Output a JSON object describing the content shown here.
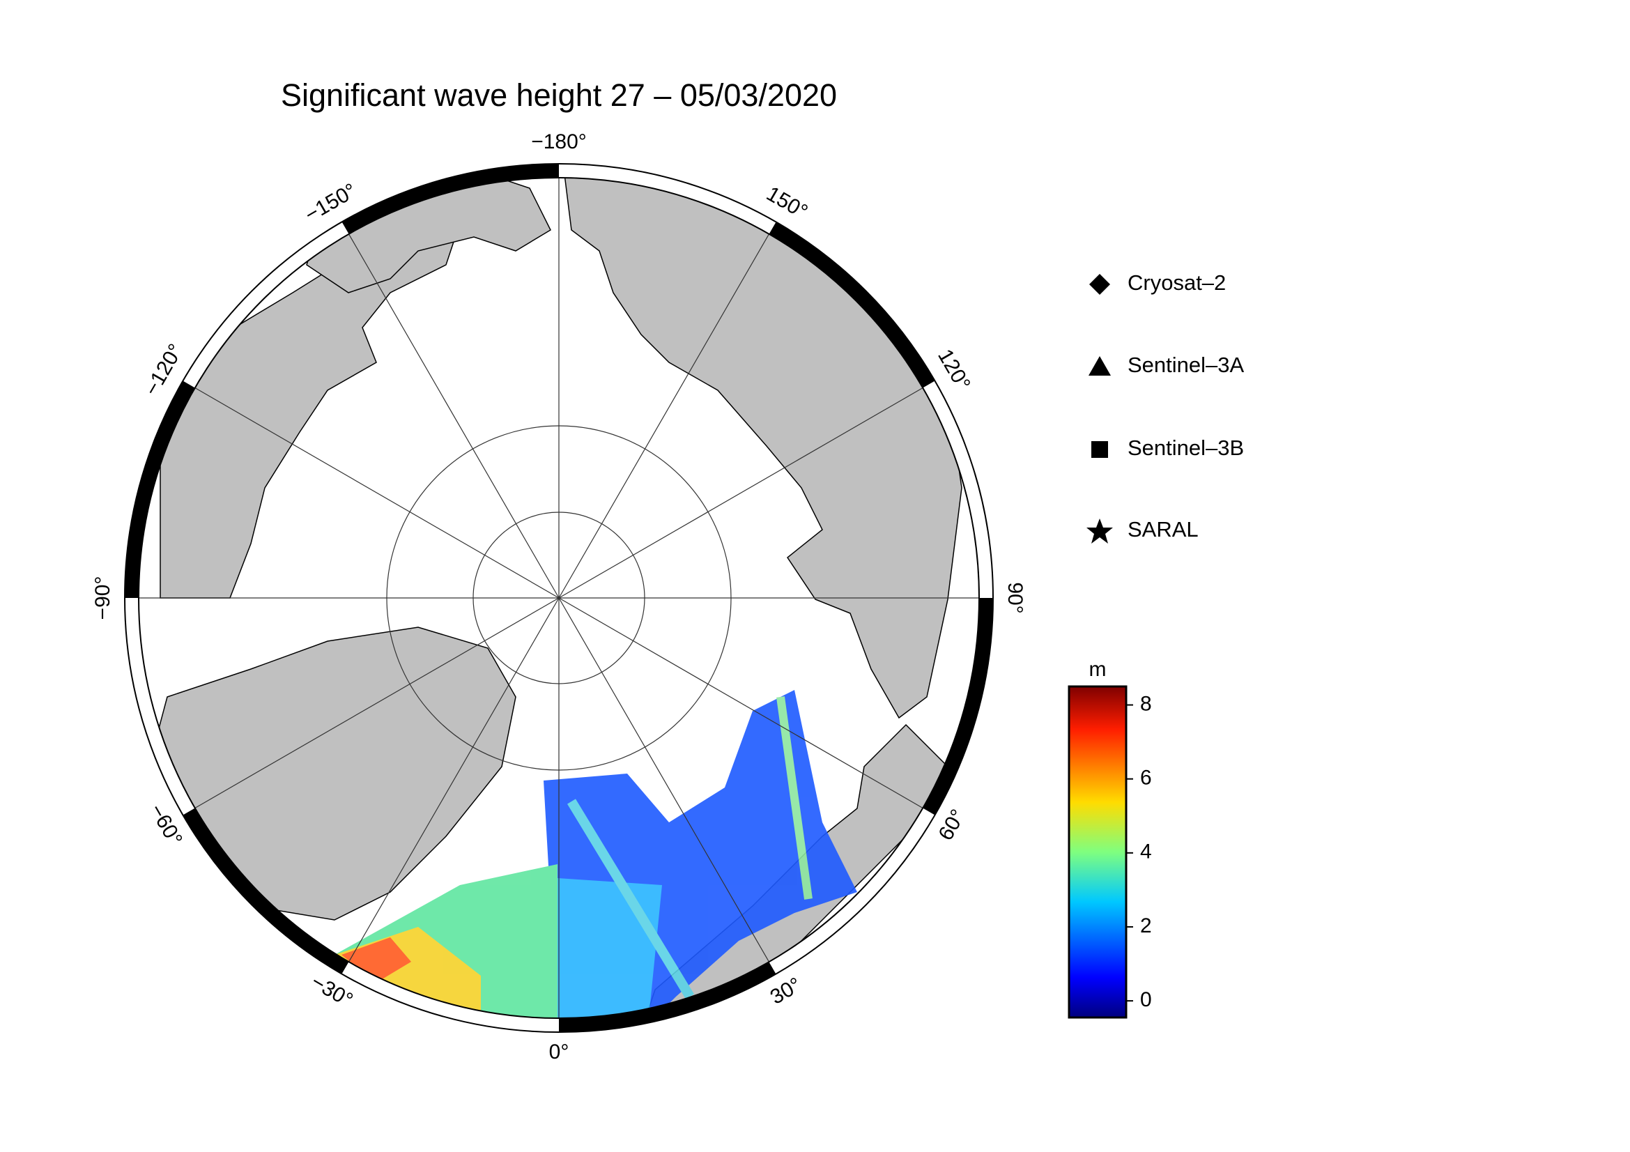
{
  "header": {
    "title": "Significant wave height 27 – 05/03/2020"
  },
  "map": {
    "longitude_ticks": [
      {
        "value": -180,
        "label": "−180°"
      },
      {
        "value": -150,
        "label": "−150°"
      },
      {
        "value": 150,
        "label": "150°"
      },
      {
        "value": -120,
        "label": "−120°"
      },
      {
        "value": 120,
        "label": "120°"
      },
      {
        "value": -90,
        "label": "−90°"
      },
      {
        "value": 90,
        "label": "90°"
      },
      {
        "value": -60,
        "label": "−60°"
      },
      {
        "value": 60,
        "label": "60°"
      },
      {
        "value": -30,
        "label": "−30°"
      },
      {
        "value": 30,
        "label": "30°"
      },
      {
        "value": 0,
        "label": "0°"
      }
    ]
  },
  "legend": {
    "items": [
      "Cryosat–2",
      "Sentinel–3A",
      "Sentinel–3B",
      "SARAL"
    ]
  },
  "colorbar": {
    "unit": "m",
    "ylim": [
      -0.45,
      8.5
    ],
    "yticks": [
      0,
      2,
      4,
      6,
      8
    ]
  }
}
